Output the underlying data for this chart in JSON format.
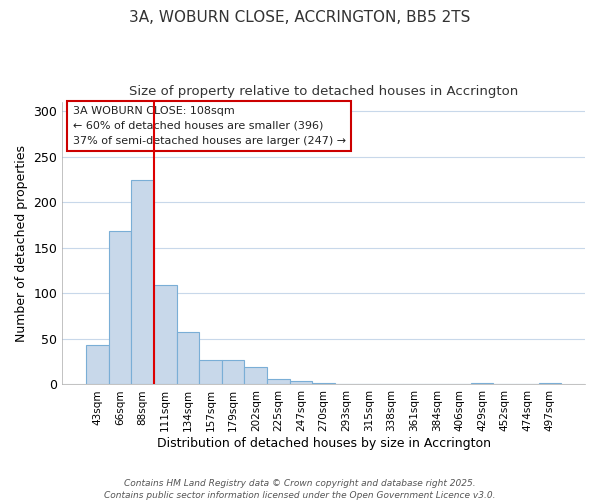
{
  "title_line1": "3A, WOBURN CLOSE, ACCRINGTON, BB5 2TS",
  "title_line2": "Size of property relative to detached houses in Accrington",
  "xlabel": "Distribution of detached houses by size in Accrington",
  "ylabel": "Number of detached properties",
  "categories": [
    "43sqm",
    "66sqm",
    "88sqm",
    "111sqm",
    "134sqm",
    "157sqm",
    "179sqm",
    "202sqm",
    "225sqm",
    "247sqm",
    "270sqm",
    "293sqm",
    "315sqm",
    "338sqm",
    "361sqm",
    "384sqm",
    "406sqm",
    "429sqm",
    "452sqm",
    "474sqm",
    "497sqm"
  ],
  "values": [
    43,
    168,
    224,
    109,
    58,
    27,
    27,
    19,
    6,
    4,
    2,
    1,
    1,
    1,
    1,
    1,
    1,
    2,
    1,
    1,
    2
  ],
  "bar_color": "#c8d8ea",
  "bar_edge_color": "#7aaed6",
  "fig_background_color": "#ffffff",
  "ax_background_color": "#ffffff",
  "grid_color": "#c8d8ea",
  "annotation_title": "3A WOBURN CLOSE: 108sqm",
  "annotation_line2": "← 60% of detached houses are smaller (396)",
  "annotation_line3": "37% of semi-detached houses are larger (247) →",
  "annotation_box_facecolor": "#ffffff",
  "annotation_box_edgecolor": "#cc0000",
  "red_line_color": "#dd0000",
  "ylim": [
    0,
    310
  ],
  "yticks": [
    0,
    50,
    100,
    150,
    200,
    250,
    300
  ],
  "footer_line1": "Contains HM Land Registry data © Crown copyright and database right 2025.",
  "footer_line2": "Contains public sector information licensed under the Open Government Licence v3.0."
}
